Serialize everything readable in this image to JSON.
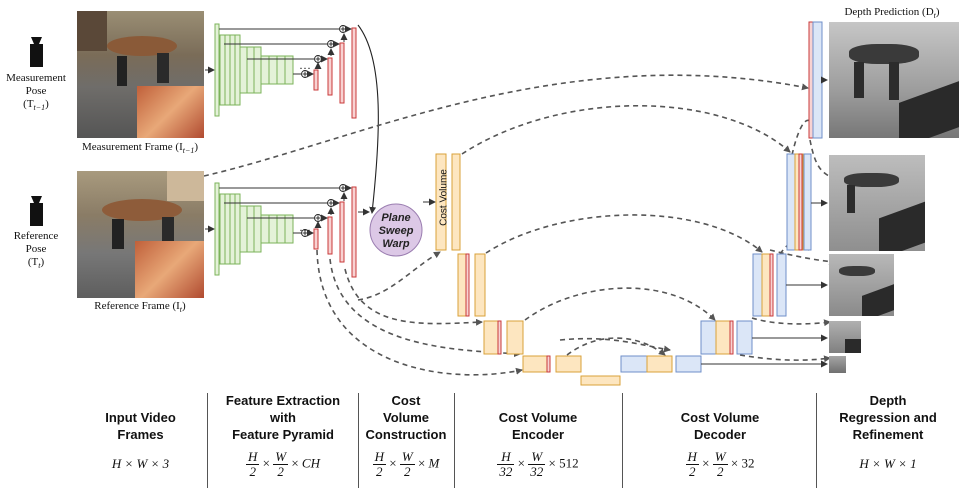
{
  "labels": {
    "measurement_pose": [
      "Measurement",
      "Pose"
    ],
    "measurement_pose_sym": "(T",
    "measurement_pose_sub": "t−1",
    "reference_pose": [
      "Reference",
      "Pose"
    ],
    "reference_pose_sym": "(T",
    "reference_pose_sub": "t",
    "measurement_frame": "Measurement Frame (I",
    "measurement_frame_sub": "t−1",
    "reference_frame": "Reference Frame (I",
    "reference_frame_sub": "t",
    "depth_prediction": "Depth Prediction (D",
    "depth_prediction_sub": "t",
    "plane_sweep": [
      "Plane",
      "Sweep",
      "Warp"
    ],
    "cost_volume": "Cost Volume",
    "ellipsis": "···"
  },
  "stages": [
    {
      "title": [
        "Input Video",
        "Frames"
      ]
    },
    {
      "title": [
        "Feature Extraction",
        "with",
        "Feature Pyramid"
      ]
    },
    {
      "title": [
        "Cost",
        "Volume",
        "Construction"
      ]
    },
    {
      "title": [
        "Cost Volume",
        "Encoder"
      ]
    },
    {
      "title": [
        "Cost Volume",
        "Decoder"
      ]
    },
    {
      "title": [
        "Depth",
        "Regression and",
        "Refinement"
      ]
    }
  ],
  "dims": {
    "input": "H × W × 3",
    "feature": {
      "n1": "H",
      "d1": "2",
      "n2": "W",
      "d2": "2",
      "tail": "CH"
    },
    "cost": {
      "n1": "H",
      "d1": "2",
      "n2": "W",
      "d2": "2",
      "tail": "M"
    },
    "encoder": {
      "n1": "H",
      "d1": "32",
      "n2": "W",
      "d2": "32",
      "tail": "512"
    },
    "decoder": {
      "n1": "H",
      "d1": "2",
      "n2": "W",
      "d2": "2",
      "tail": "32"
    },
    "output": "H × W × 1"
  },
  "colors": {
    "green_fill": "#e4f2d8",
    "green_stroke": "#7bb35a",
    "red_fill": "#f8d2d2",
    "red_stroke": "#c93a3a",
    "orange_fill": "#fde6c0",
    "orange_stroke": "#d9a13a",
    "blue_fill": "#dbe6f7",
    "blue_stroke": "#6f8fc9",
    "purple_fill": "#dcc8e6",
    "purple_stroke": "#9a7db0",
    "arrow": "#555555"
  },
  "icons": [
    "camera-icon",
    "camera-icon",
    "plus-circle-icon"
  ]
}
